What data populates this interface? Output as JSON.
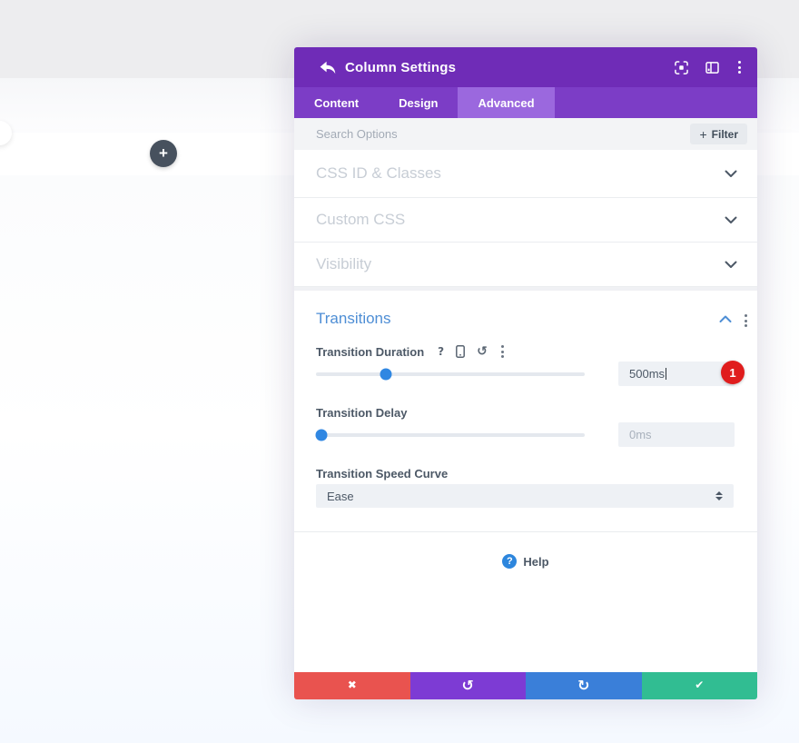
{
  "page": {
    "add_button_glyph": "+"
  },
  "modal": {
    "title": "Column Settings",
    "tabs": [
      {
        "label": "Content",
        "active": false
      },
      {
        "label": "Design",
        "active": false
      },
      {
        "label": "Advanced",
        "active": true
      }
    ],
    "search": {
      "placeholder": "Search Options",
      "filter_plus": "+",
      "filter_label": "Filter"
    },
    "sections": [
      {
        "title": "CSS ID & Classes"
      },
      {
        "title": "Custom CSS"
      },
      {
        "title": "Visibility"
      }
    ],
    "transitions": {
      "title": "Transitions",
      "duration": {
        "label": "Transition Duration",
        "value": "500ms",
        "slider_percent": 26
      },
      "delay": {
        "label": "Transition Delay",
        "value": "0ms",
        "slider_percent": 2
      },
      "speed_curve": {
        "label": "Transition Speed Curve",
        "value": "Ease"
      },
      "annotation_badge": "1"
    },
    "help": {
      "icon_glyph": "?",
      "label": "Help"
    }
  },
  "icons": {
    "help_glyph": "?",
    "reset_glyph": "↺",
    "close_glyph": "✖",
    "undo_glyph": "↺",
    "redo_glyph": "↻",
    "confirm_glyph": "✔"
  },
  "colors": {
    "header_purple": "#6f2cb7",
    "tabbar_purple": "#7c3dc6",
    "active_tab_purple": "#9b68de",
    "section_title_gray": "#c7cdd5",
    "accent_blue": "#4e8ed5",
    "slider_blue": "#3087e2",
    "badge_red": "#e01d1d",
    "footer_red": "#e9534f",
    "footer_purple": "#7d3bd4",
    "footer_blue": "#3a7fd9",
    "footer_green": "#31bd92",
    "page_gray": "#ededef"
  }
}
